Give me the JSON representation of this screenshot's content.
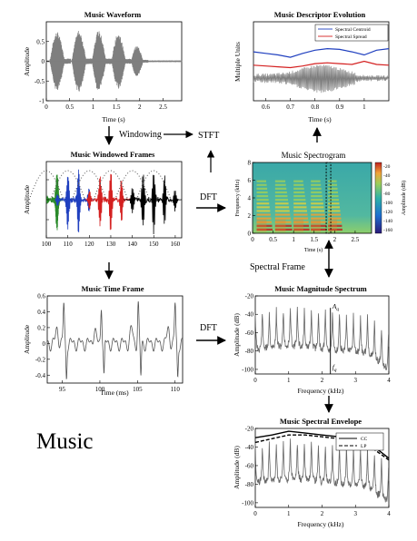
{
  "figure_label": "Music",
  "flow_labels": {
    "windowing": "Windowing",
    "stft": "STFT",
    "dft_top": "DFT",
    "dft_bottom": "DFT",
    "spectral_frame": "Spectral Frame"
  },
  "colors": {
    "waveform": "#7f7f7f",
    "centroid": "#1f3fbf",
    "spread": "#d42020",
    "frame_green": "#2a8a2a",
    "frame_blue": "#1f3fbf",
    "frame_red": "#d42020",
    "frame_black": "#000000",
    "window_dots": "#555555"
  },
  "chart_data": [
    {
      "id": "waveform",
      "type": "line",
      "title": "Music Waveform",
      "xlabel": "Time (s)",
      "ylabel": "Amplitude",
      "xlim": [
        0,
        2.9
      ],
      "ylim": [
        -1,
        1
      ],
      "xticks": [
        0,
        0.5,
        1,
        1.5,
        2,
        2.5
      ],
      "yticks": [
        -1,
        -0.5,
        0,
        0.5
      ],
      "x_tick_labels": [
        "0",
        "0.5",
        "1",
        "1.5",
        "2",
        "2.5"
      ],
      "y_tick_labels": [
        "-1",
        "-0.5",
        "0",
        "0.5"
      ],
      "series": [
        {
          "color": "#7f7f7f",
          "envelope_bursts": [
            {
              "start": 0.08,
              "end": 0.52,
              "peak": 0.85
            },
            {
              "start": 0.55,
              "end": 0.98,
              "peak": 0.9
            },
            {
              "start": 0.98,
              "end": 1.4,
              "peak": 0.88
            },
            {
              "start": 1.4,
              "end": 1.82,
              "peak": 0.8
            },
            {
              "start": 1.82,
              "end": 2.18,
              "peak": 0.45
            }
          ]
        }
      ]
    },
    {
      "id": "descriptor",
      "type": "line",
      "title": "Music Descriptor Evolution",
      "xlabel": "Time (s)",
      "ylabel": "Multiple Units",
      "xlim": [
        0.55,
        1.1
      ],
      "xticks": [
        0.6,
        0.7,
        0.8,
        0.9,
        1
      ],
      "x_tick_labels": [
        "0.6",
        "0.7",
        "0.8",
        "0.9",
        "1"
      ],
      "legend": [
        "Spectral Centroid",
        "Spectral Spread"
      ],
      "legend_position": "top-right",
      "series": [
        {
          "name": "Spectral Centroid",
          "color": "#1f3fbf",
          "x": [
            0.55,
            0.6,
            0.65,
            0.7,
            0.75,
            0.8,
            0.85,
            0.9,
            0.95,
            1.0,
            1.05,
            1.1
          ],
          "y": [
            0.62,
            0.6,
            0.58,
            0.55,
            0.6,
            0.64,
            0.66,
            0.65,
            0.62,
            0.58,
            0.64,
            0.66
          ]
        },
        {
          "name": "Spectral Spread",
          "color": "#d42020",
          "x": [
            0.55,
            0.6,
            0.65,
            0.7,
            0.75,
            0.8,
            0.85,
            0.9,
            0.95,
            1.0,
            1.05,
            1.1
          ],
          "y": [
            0.45,
            0.44,
            0.43,
            0.42,
            0.44,
            0.47,
            0.48,
            0.47,
            0.46,
            0.5,
            0.46,
            0.45
          ]
        }
      ]
    },
    {
      "id": "windowed",
      "type": "line",
      "title": "Music Windowed Frames",
      "ylabel": "Amplitude",
      "xlim": [
        100,
        163
      ],
      "xticks": [
        100,
        110,
        120,
        130,
        140,
        150,
        160
      ],
      "x_tick_labels": [
        "100",
        "110",
        "120",
        "130",
        "140",
        "150",
        "160"
      ],
      "series_colors": [
        "#2a8a2a",
        "#1f3fbf",
        "#d42020",
        "#000000"
      ]
    },
    {
      "id": "spectrogram",
      "type": "heatmap",
      "title": "Music Spectrogram",
      "xlabel": "Time (s)",
      "ylabel": "Frequency (kHz)",
      "colorbar_label": "Amplitude (dB)",
      "xlim": [
        0,
        2.9
      ],
      "ylim": [
        0,
        8
      ],
      "xticks": [
        0,
        0.5,
        1,
        1.5,
        2,
        2.5
      ],
      "yticks": [
        0,
        2,
        4,
        6,
        8
      ],
      "x_tick_labels": [
        "0",
        "0.5",
        "1",
        "1.5",
        "2",
        "2.5"
      ],
      "y_tick_labels": [
        "0",
        "2",
        "4",
        "6",
        "8"
      ],
      "colorbar_ticks": [
        -20,
        -40,
        -60,
        -80,
        -100,
        -120,
        -140,
        -160
      ],
      "colorbar_tick_labels": [
        "-20",
        "-40",
        "-60",
        "-80",
        "-100",
        "-120",
        "-140",
        "-160"
      ],
      "frame_marker_time": 1.85
    },
    {
      "id": "timeframe",
      "type": "line",
      "title": "Music Time Frame",
      "xlabel": "Time (ms)",
      "ylabel": "Amplitude",
      "xlim": [
        93,
        111
      ],
      "ylim": [
        -0.5,
        0.6
      ],
      "xticks": [
        95,
        100,
        105,
        110
      ],
      "yticks": [
        -0.4,
        -0.2,
        0,
        0.2,
        0.4,
        0.6
      ],
      "x_tick_labels": [
        "95",
        "100",
        "105",
        "110"
      ],
      "y_tick_labels": [
        "-0.4",
        "-0.2",
        "0",
        "0.2",
        "0.4",
        "0.6"
      ],
      "pulse_times": [
        95.2,
        100.2,
        105.1,
        110.0
      ]
    },
    {
      "id": "magnitude",
      "type": "line",
      "title": "Music Magnitude Spectrum",
      "xlabel": "Frequency (kHz)",
      "ylabel": "Amplitude (dB)",
      "xlim": [
        0,
        4
      ],
      "ylim": [
        -105,
        -20
      ],
      "xticks": [
        0,
        1,
        2,
        3,
        4
      ],
      "yticks": [
        -20,
        -40,
        -60,
        -80,
        -100
      ],
      "x_tick_labels": [
        "0",
        "1",
        "2",
        "3",
        "4"
      ],
      "y_tick_labels": [
        "-20",
        "-40",
        "-60",
        "-80",
        "-100"
      ],
      "annotation_a": "A",
      "annotation_a_sub": "q",
      "annotation_f": "f",
      "annotation_f_sub": "q",
      "marker_frequency": 2.25,
      "marker_amplitude": -33
    },
    {
      "id": "envelope",
      "type": "line",
      "title": "Music Spectral Envelope",
      "xlabel": "Frequency (kHz)",
      "ylabel": "Amplitude (dB)",
      "xlim": [
        0,
        4
      ],
      "ylim": [
        -105,
        -20
      ],
      "xticks": [
        0,
        1,
        2,
        3,
        4
      ],
      "yticks": [
        -20,
        -40,
        -60,
        -80,
        -100
      ],
      "x_tick_labels": [
        "0",
        "1",
        "2",
        "3",
        "4"
      ],
      "y_tick_labels": [
        "-20",
        "-40",
        "-60",
        "-80",
        "-100"
      ],
      "legend": [
        "CC",
        "LP"
      ],
      "legend_position": "top-right",
      "series": [
        {
          "name": "CC",
          "x": [
            0,
            0.5,
            1,
            1.5,
            2,
            2.5,
            3,
            3.5,
            4
          ],
          "y": [
            -30,
            -27,
            -23,
            -25,
            -27,
            -29,
            -32,
            -38,
            -52
          ]
        },
        {
          "name": "LP",
          "x": [
            0,
            0.5,
            1,
            1.5,
            2,
            2.5,
            3,
            3.5,
            4
          ],
          "y": [
            -35,
            -31,
            -27,
            -27,
            -29,
            -31,
            -35,
            -41,
            -54
          ]
        }
      ]
    }
  ]
}
